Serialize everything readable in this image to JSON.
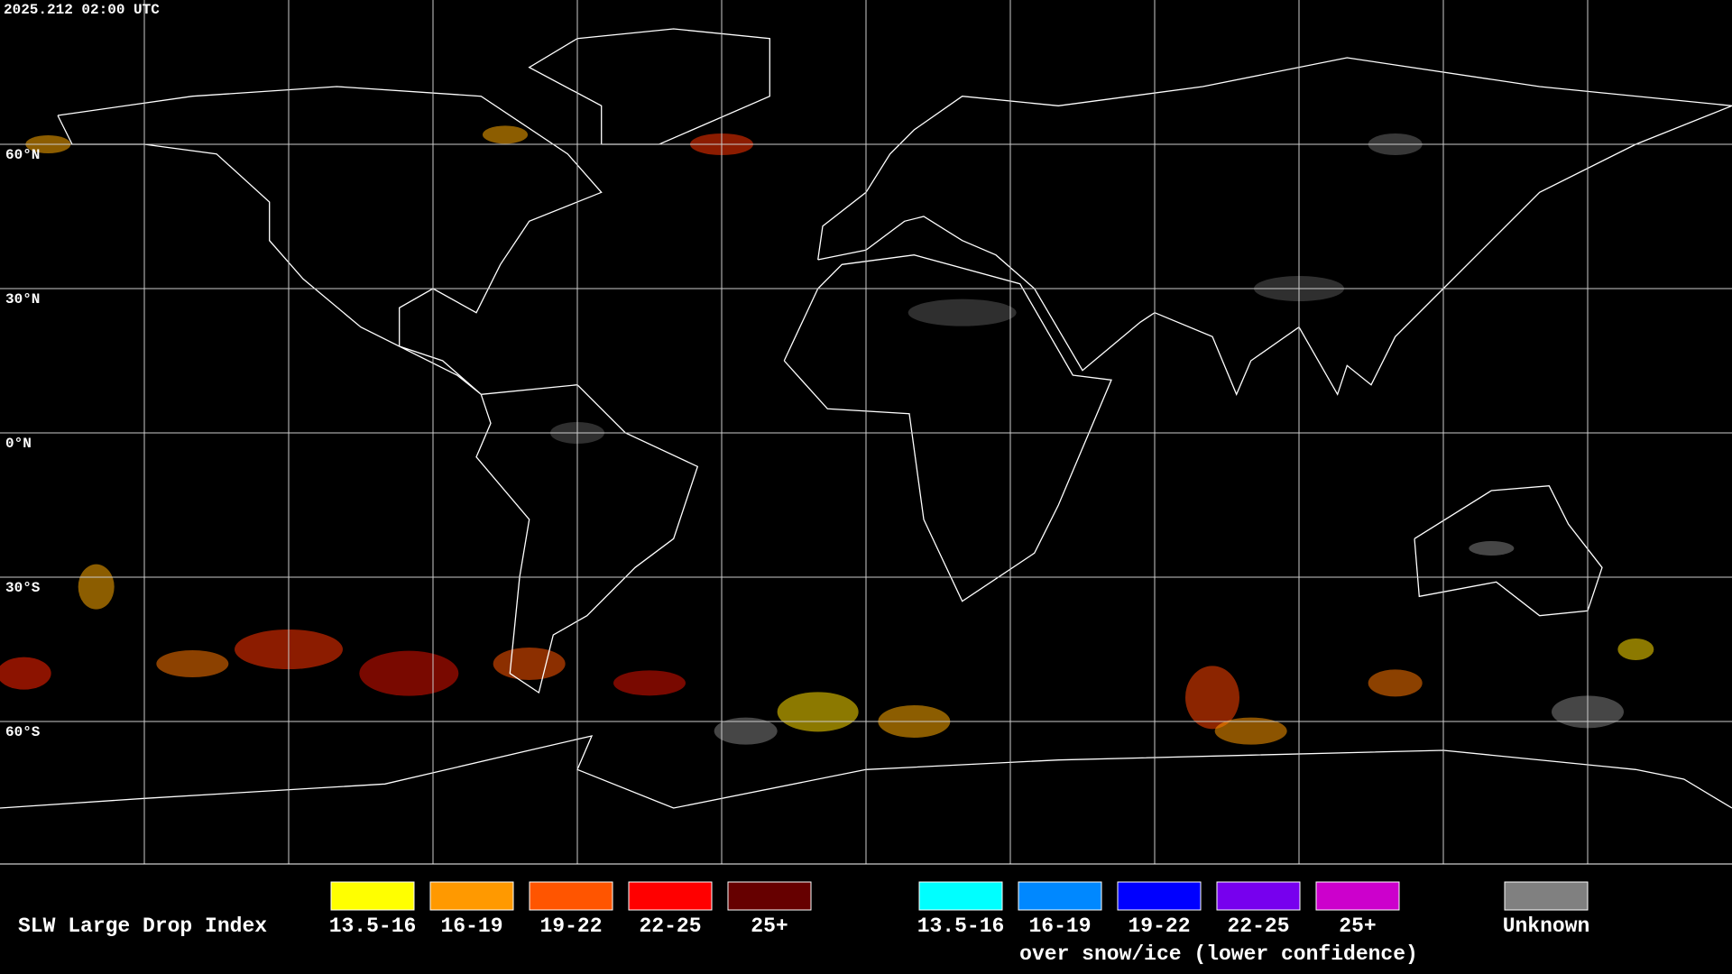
{
  "header": {
    "timestamp": "2025.212 02:00 UTC"
  },
  "lat_labels": [
    "60°N",
    "30°N",
    "0°N",
    "30°S",
    "60°S"
  ],
  "legend": {
    "title": "SLW Large Drop Index",
    "bins": [
      {
        "label": "13.5-16",
        "color": "#ffff00"
      },
      {
        "label": "16-19",
        "color": "#ff9900"
      },
      {
        "label": "19-22",
        "color": "#ff5500"
      },
      {
        "label": "22-25",
        "color": "#ff0000"
      },
      {
        "label": "25+",
        "color": "#660000"
      }
    ],
    "snow_bins": [
      {
        "label": "13.5-16",
        "color": "#00ffff"
      },
      {
        "label": "16-19",
        "color": "#0088ff"
      },
      {
        "label": "19-22",
        "color": "#0000ff"
      },
      {
        "label": "22-25",
        "color": "#7700ee"
      },
      {
        "label": "25+",
        "color": "#cc00cc"
      }
    ],
    "snow_note": "over snow/ice (lower confidence)",
    "unknown": {
      "label": "Unknown",
      "color": "#808080"
    }
  }
}
